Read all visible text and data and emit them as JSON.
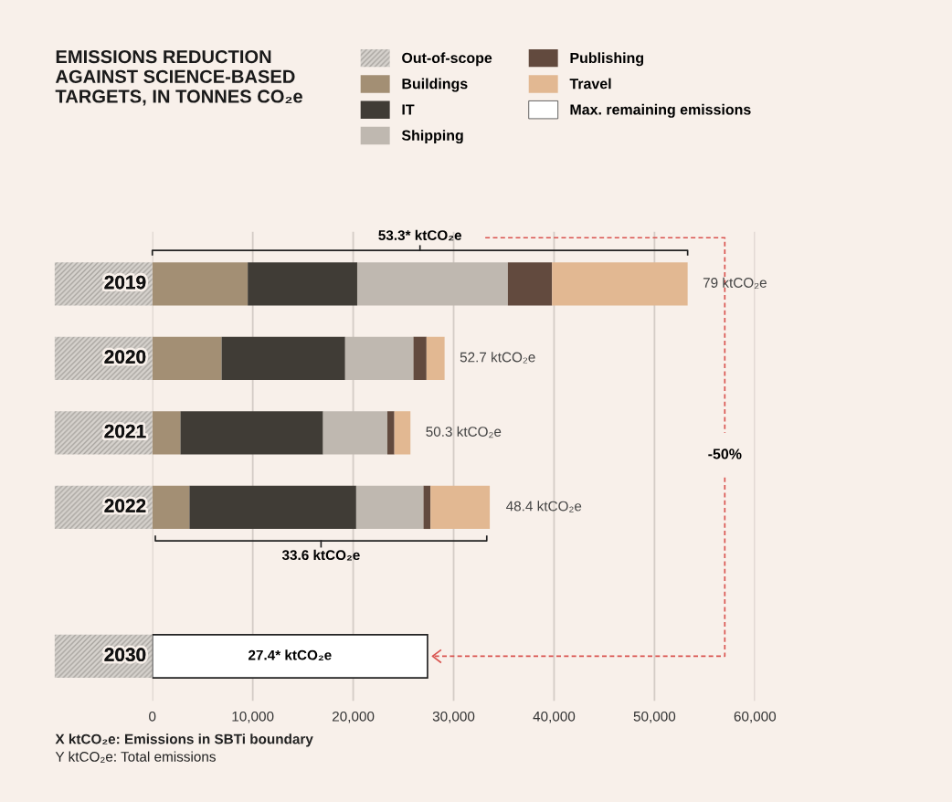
{
  "chart_data": {
    "type": "bar",
    "orientation": "horizontal",
    "stacked": true,
    "title": "EMISSIONS REDUCTION\nAGAINST SCIENCE-BASED\nTARGETS, IN TONNES CO₂e",
    "categories": [
      "2019",
      "2020",
      "2021",
      "2022",
      null,
      "2030"
    ],
    "series": [
      {
        "name": "Out-of-scope",
        "color": "#d6d2cd",
        "values": [
          null,
          null,
          null,
          null,
          null,
          null
        ]
      },
      {
        "name": "Buildings",
        "color": "#a38f74",
        "values": [
          9500,
          6900,
          2800,
          3700,
          null,
          null
        ]
      },
      {
        "name": "IT",
        "color": "#403c36",
        "values": [
          10900,
          12300,
          14200,
          16600,
          null,
          null
        ]
      },
      {
        "name": "Shipping",
        "color": "#bfb8b0",
        "values": [
          15000,
          6800,
          6400,
          6700,
          null,
          null
        ]
      },
      {
        "name": "Publishing",
        "color": "#624a3e",
        "values": [
          4400,
          1300,
          700,
          700,
          null,
          null
        ]
      },
      {
        "name": "Travel",
        "color": "#e2b892",
        "values": [
          13500,
          1800,
          1600,
          5900,
          null,
          null
        ]
      },
      {
        "name": "Max. remaining emissions",
        "color": "#ffffff",
        "values": [
          null,
          null,
          null,
          null,
          null,
          27400
        ]
      }
    ],
    "xlim": [
      0,
      60000
    ],
    "xticks": [
      {
        "value": 0,
        "label": "0"
      },
      {
        "value": 10000,
        "label": "10,000"
      },
      {
        "value": 20000,
        "label": "20,000"
      },
      {
        "value": 30000,
        "label": "30,000"
      },
      {
        "value": 40000,
        "label": "40,000"
      },
      {
        "value": 50000,
        "label": "50,000"
      },
      {
        "value": 60000,
        "label": "60,000"
      }
    ],
    "grid": "x",
    "legend": "top right",
    "annotations": [
      {
        "text": "79 ktCO₂e",
        "x": 53300,
        "y": "2019"
      },
      {
        "text": "52.7 ktCO₂e",
        "x": 29100,
        "y": "2020"
      },
      {
        "text": "50.3 ktCO₂e",
        "x": 25700,
        "y": "2021"
      },
      {
        "text": "48.4 ktCO₂e",
        "x": 33700,
        "y": "2022"
      },
      "53.3* ktCO₂e",
      "33.6 ktCO₂e",
      "27.4* ktCO₂e",
      "-50%",
      "X ktCO₂e: Emissions in SBTi boundary",
      "Y ktCO₂e: Total emissions"
    ]
  }
}
